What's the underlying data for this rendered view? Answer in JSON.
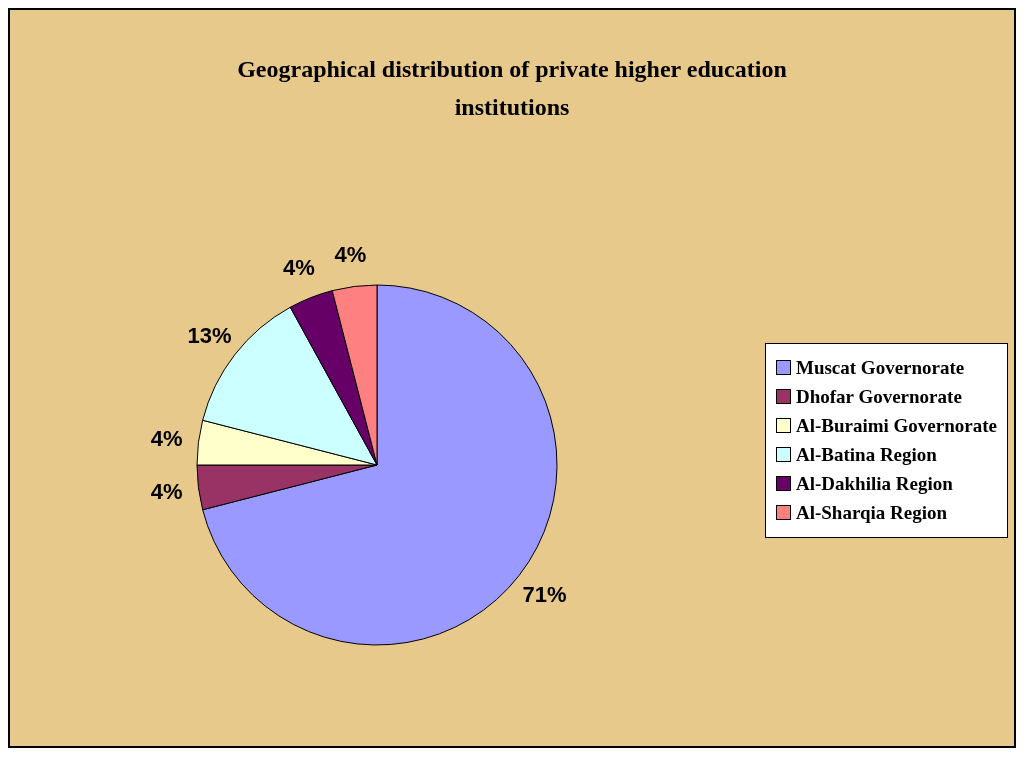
{
  "chart_data": {
    "type": "pie",
    "title": "Geographical distribution of private higher education institutions",
    "categories": [
      "Muscat Governorate",
      "Dhofar Governorate",
      "Al-Buraimi Governorate",
      "Al-Batina Region",
      "Al-Dakhilia Region",
      "Al-Sharqia Region"
    ],
    "values": [
      71,
      4,
      4,
      13,
      4,
      4
    ],
    "colors": [
      "#9999ff",
      "#993366",
      "#ffffcc",
      "#ccffff",
      "#660066",
      "#ff8080"
    ],
    "value_labels": [
      "71%",
      "4%",
      "4%",
      "13%",
      "4%",
      "4%"
    ],
    "legend": "right"
  }
}
